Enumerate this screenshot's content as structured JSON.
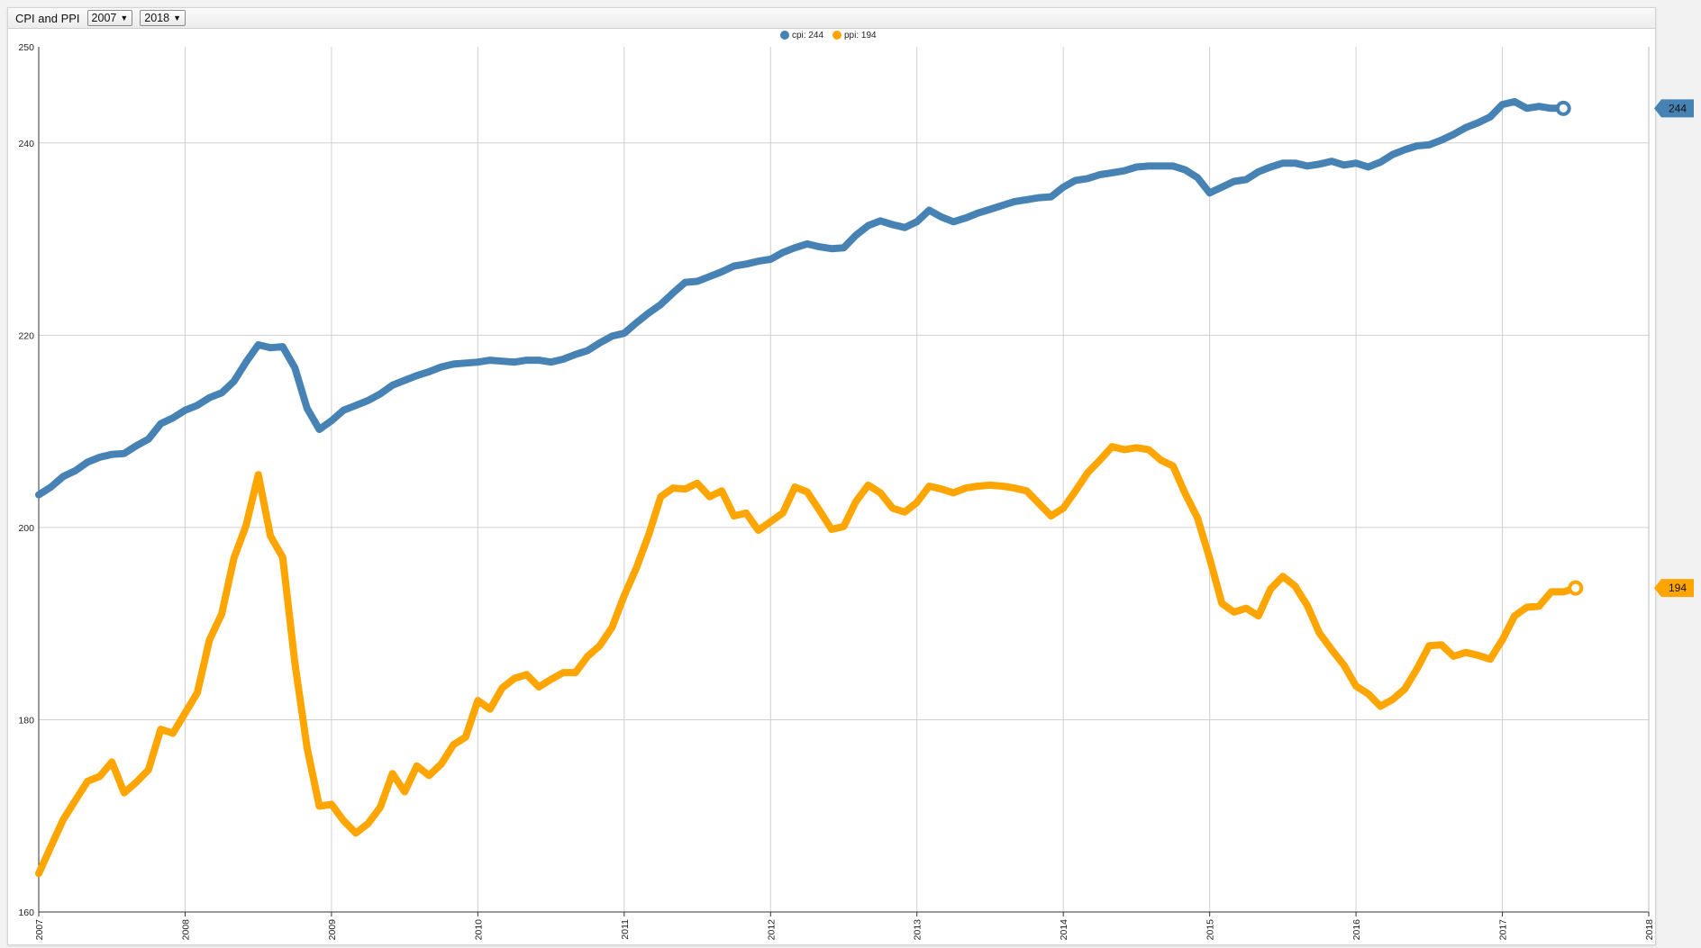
{
  "toolbar": {
    "title": "CPI and PPI",
    "start_year": "2007",
    "end_year": "2018"
  },
  "colors": {
    "cpi": "#4682b4",
    "ppi": "#ffa500",
    "grid": "#d0d0d0"
  },
  "chart_data": {
    "type": "line",
    "title": "",
    "xlabel": "",
    "ylabel": "",
    "xlim": [
      2007,
      2018
    ],
    "ylim": [
      160,
      250
    ],
    "y_ticks": [
      160,
      180,
      200,
      220,
      240,
      250
    ],
    "x_ticks": [
      "2007",
      "2008",
      "2009",
      "2010",
      "2011",
      "2012",
      "2013",
      "2014",
      "2015",
      "2016",
      "2017",
      "2018"
    ],
    "grid": true,
    "legend": "top-center",
    "legend_entries": [
      "cpi: 244",
      "ppi: 194"
    ],
    "end_labels": {
      "cpi": "244",
      "ppi": "194"
    },
    "series": [
      {
        "name": "cpi",
        "start": "2007-01",
        "values": [
          203.4,
          204.2,
          205.3,
          205.9,
          206.8,
          207.3,
          207.6,
          207.7,
          208.5,
          209.2,
          210.8,
          211.4,
          212.2,
          212.7,
          213.5,
          214.0,
          215.2,
          217.2,
          219.0,
          218.7,
          218.8,
          216.6,
          212.4,
          210.2,
          211.1,
          212.2,
          212.7,
          213.2,
          213.9,
          214.8,
          215.3,
          215.8,
          216.2,
          216.7,
          217.0,
          217.1,
          217.2,
          217.4,
          217.3,
          217.2,
          217.4,
          217.4,
          217.2,
          217.5,
          218.0,
          218.4,
          219.2,
          219.9,
          220.2,
          221.3,
          222.3,
          223.2,
          224.4,
          225.5,
          225.6,
          226.1,
          226.6,
          227.2,
          227.4,
          227.7,
          227.9,
          228.6,
          229.1,
          229.5,
          229.2,
          229.0,
          229.1,
          230.4,
          231.4,
          231.9,
          231.5,
          231.2,
          231.8,
          233.0,
          232.3,
          231.8,
          232.2,
          232.7,
          233.1,
          233.5,
          233.9,
          234.1,
          234.3,
          234.4,
          235.4,
          236.1,
          236.3,
          236.7,
          236.9,
          237.1,
          237.5,
          237.6,
          237.6,
          237.6,
          237.2,
          236.4,
          234.8,
          235.4,
          236.0,
          236.2,
          237.0,
          237.5,
          237.9,
          237.9,
          237.6,
          237.8,
          238.1,
          237.7,
          237.9,
          237.5,
          238.0,
          238.8,
          239.3,
          239.7,
          239.8,
          240.3,
          240.9,
          241.6,
          242.1,
          242.7,
          244.0,
          244.3,
          243.6,
          243.8,
          243.6,
          243.6
        ]
      },
      {
        "name": "ppi",
        "start": "2007-01",
        "values": [
          164.0,
          166.8,
          169.6,
          171.6,
          173.6,
          174.1,
          175.6,
          172.4,
          173.5,
          174.8,
          179.0,
          178.6,
          180.7,
          182.8,
          188.3,
          191.0,
          196.8,
          200.2,
          205.5,
          199.1,
          196.9,
          185.9,
          177.1,
          171.0,
          171.2,
          169.5,
          168.2,
          169.2,
          170.9,
          174.4,
          172.5,
          175.2,
          174.2,
          175.4,
          177.4,
          178.2,
          182.0,
          181.1,
          183.3,
          184.3,
          184.7,
          183.4,
          184.2,
          184.9,
          184.9,
          186.6,
          187.7,
          189.6,
          192.9,
          195.8,
          199.2,
          203.2,
          204.1,
          204.0,
          204.6,
          203.2,
          203.8,
          201.2,
          201.5,
          199.7,
          200.6,
          201.5,
          204.2,
          203.7,
          201.8,
          199.8,
          200.1,
          202.7,
          204.4,
          203.6,
          202.0,
          201.6,
          202.6,
          204.3,
          204.0,
          203.6,
          204.1,
          204.3,
          204.4,
          204.3,
          204.1,
          203.8,
          202.5,
          201.2,
          202.0,
          203.8,
          205.7,
          207.0,
          208.4,
          208.1,
          208.3,
          208.1,
          207.0,
          206.4,
          203.5,
          201.0,
          196.8,
          192.1,
          191.2,
          191.6,
          190.8,
          193.6,
          194.9,
          193.9,
          191.9,
          189.0,
          187.3,
          185.7,
          183.5,
          182.7,
          181.4,
          182.1,
          183.2,
          185.3,
          187.7,
          187.8,
          186.6,
          187.0,
          186.7,
          186.3,
          188.3,
          190.8,
          191.7,
          191.8,
          193.3,
          193.3,
          193.7
        ]
      }
    ]
  }
}
